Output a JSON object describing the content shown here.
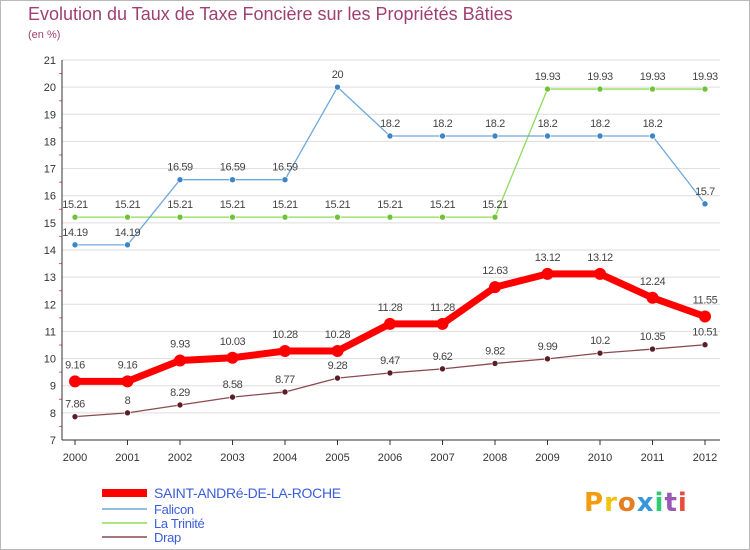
{
  "chart_data": {
    "type": "line",
    "title": "Evolution du Taux de Taxe Foncière sur les Propriétés Bâties",
    "unit_label": "(en %)",
    "xlabel": "",
    "ylabel": "",
    "ylim": [
      7,
      21
    ],
    "yticks": [
      "7",
      "8",
      "9",
      "10",
      "11",
      "12",
      "13",
      "14",
      "15",
      "16",
      "17",
      "18",
      "19",
      "20",
      "21"
    ],
    "categories": [
      "2000",
      "2001",
      "2002",
      "2003",
      "2004",
      "2005",
      "2006",
      "2007",
      "2008",
      "2009",
      "2010",
      "2011",
      "2012"
    ],
    "series": [
      {
        "name": "SAINT-ANDRé-DE-LA-ROCHE",
        "color": "#ff0000",
        "marker_color": "#ff0000",
        "emphasis": true,
        "values": [
          9.16,
          9.16,
          9.93,
          10.03,
          10.28,
          10.28,
          11.28,
          11.28,
          12.63,
          13.12,
          13.12,
          12.24,
          11.55
        ],
        "labels": [
          "9.16",
          "9.16",
          "9.93",
          "10.03",
          "10.28",
          "10.28",
          "11.28",
          "11.28",
          "12.63",
          "13.12",
          "13.12",
          "12.24",
          "11.55"
        ]
      },
      {
        "name": "Falicon",
        "color": "#6fa8dc",
        "marker_color": "#3d85c6",
        "emphasis": false,
        "values": [
          14.19,
          14.19,
          16.59,
          16.59,
          16.59,
          20,
          18.2,
          18.2,
          18.2,
          18.2,
          18.2,
          18.2,
          15.7
        ],
        "labels": [
          "14.19",
          "14.19",
          "16.59",
          "16.59",
          "16.59",
          "20",
          "18.2",
          "18.2",
          "18.2",
          "18.2",
          "18.2",
          "18.2",
          "15.7"
        ]
      },
      {
        "name": "La Trinité",
        "color": "#8fdb5a",
        "marker_color": "#6fc23a",
        "emphasis": false,
        "values": [
          15.21,
          15.21,
          15.21,
          15.21,
          15.21,
          15.21,
          15.21,
          15.21,
          15.21,
          19.93,
          19.93,
          19.93,
          19.93
        ],
        "labels": [
          "15.21",
          "15.21",
          "15.21",
          "15.21",
          "15.21",
          "15.21",
          "15.21",
          "15.21",
          "15.21",
          "19.93",
          "19.93",
          "19.93",
          "19.93"
        ]
      },
      {
        "name": "Drap",
        "color": "#8b4a52",
        "marker_color": "#5c1e26",
        "emphasis": false,
        "values": [
          7.86,
          8,
          8.29,
          8.58,
          8.77,
          9.28,
          9.47,
          9.62,
          9.82,
          9.99,
          10.2,
          10.35,
          10.51
        ],
        "labels": [
          "7.86",
          "8",
          "8.29",
          "8.58",
          "8.77",
          "9.28",
          "9.47",
          "9.62",
          "9.82",
          "9.99",
          "10.2",
          "10.35",
          "10.51"
        ]
      }
    ],
    "legend_position": "bottom-left"
  },
  "brand": {
    "logo_text": "Proxiti",
    "letter_colors": [
      "#f39c12",
      "#f1c40f",
      "#e67e22",
      "#3498db",
      "#2ecc71",
      "#9b59b6",
      "#e74c3c"
    ]
  },
  "colors": {
    "title": "#a04072",
    "grid": "#dddddd",
    "axis": "#333333",
    "legend_text": "#3b5ddb"
  }
}
